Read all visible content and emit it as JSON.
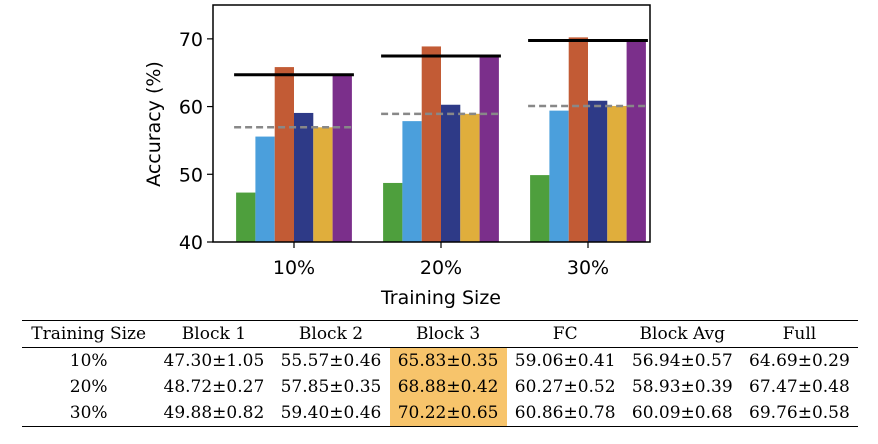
{
  "chart_data": {
    "type": "bar",
    "categories": [
      "10%",
      "20%",
      "30%"
    ],
    "xlabel": "Training Size",
    "ylabel": "Accuracy (%)",
    "ylim": [
      40,
      75
    ],
    "yticks": [
      "40",
      "50",
      "60",
      "70"
    ],
    "series": [
      {
        "name": "Block 1",
        "color": "#4e9f3d",
        "values": [
          47.3,
          48.72,
          49.88
        ]
      },
      {
        "name": "Block 2",
        "color": "#4b9fdc",
        "values": [
          55.57,
          57.85,
          59.4
        ]
      },
      {
        "name": "Block 3",
        "color": "#c25b35",
        "values": [
          65.83,
          68.88,
          70.22
        ]
      },
      {
        "name": "FC",
        "color": "#2e3a87",
        "values": [
          59.06,
          60.27,
          60.86
        ]
      },
      {
        "name": "Block Avg",
        "color": "#e0ae3c",
        "values": [
          56.94,
          58.93,
          60.09
        ]
      },
      {
        "name": "Full",
        "color": "#7b2f8b",
        "values": [
          64.69,
          67.47,
          69.76
        ]
      }
    ],
    "reference_lines": [
      {
        "label": "Full",
        "style": "solid",
        "color": "#000000",
        "values": [
          64.69,
          67.47,
          69.76
        ]
      },
      {
        "label": "Block Avg",
        "style": "dashed",
        "color": "#888888",
        "values": [
          56.94,
          58.93,
          60.09
        ]
      }
    ],
    "grid": false,
    "legend": "none"
  },
  "table": {
    "headers": [
      "Training Size",
      "Block 1",
      "Block 2",
      "Block 3",
      "FC",
      "Block Avg",
      "Full"
    ],
    "rows": [
      [
        "10%",
        "47.30±1.05",
        "55.57±0.46",
        "65.83±0.35",
        "59.06±0.41",
        "56.94±0.57",
        "64.69±0.29"
      ],
      [
        "20%",
        "48.72±0.27",
        "57.85±0.35",
        "68.88±0.42",
        "60.27±0.52",
        "58.93±0.39",
        "67.47±0.48"
      ],
      [
        "30%",
        "49.88±0.82",
        "59.40±0.46",
        "70.22±0.65",
        "60.86±0.78",
        "60.09±0.68",
        "69.76±0.58"
      ]
    ],
    "highlight_column": 3,
    "highlight_color": "#f7c46b"
  }
}
